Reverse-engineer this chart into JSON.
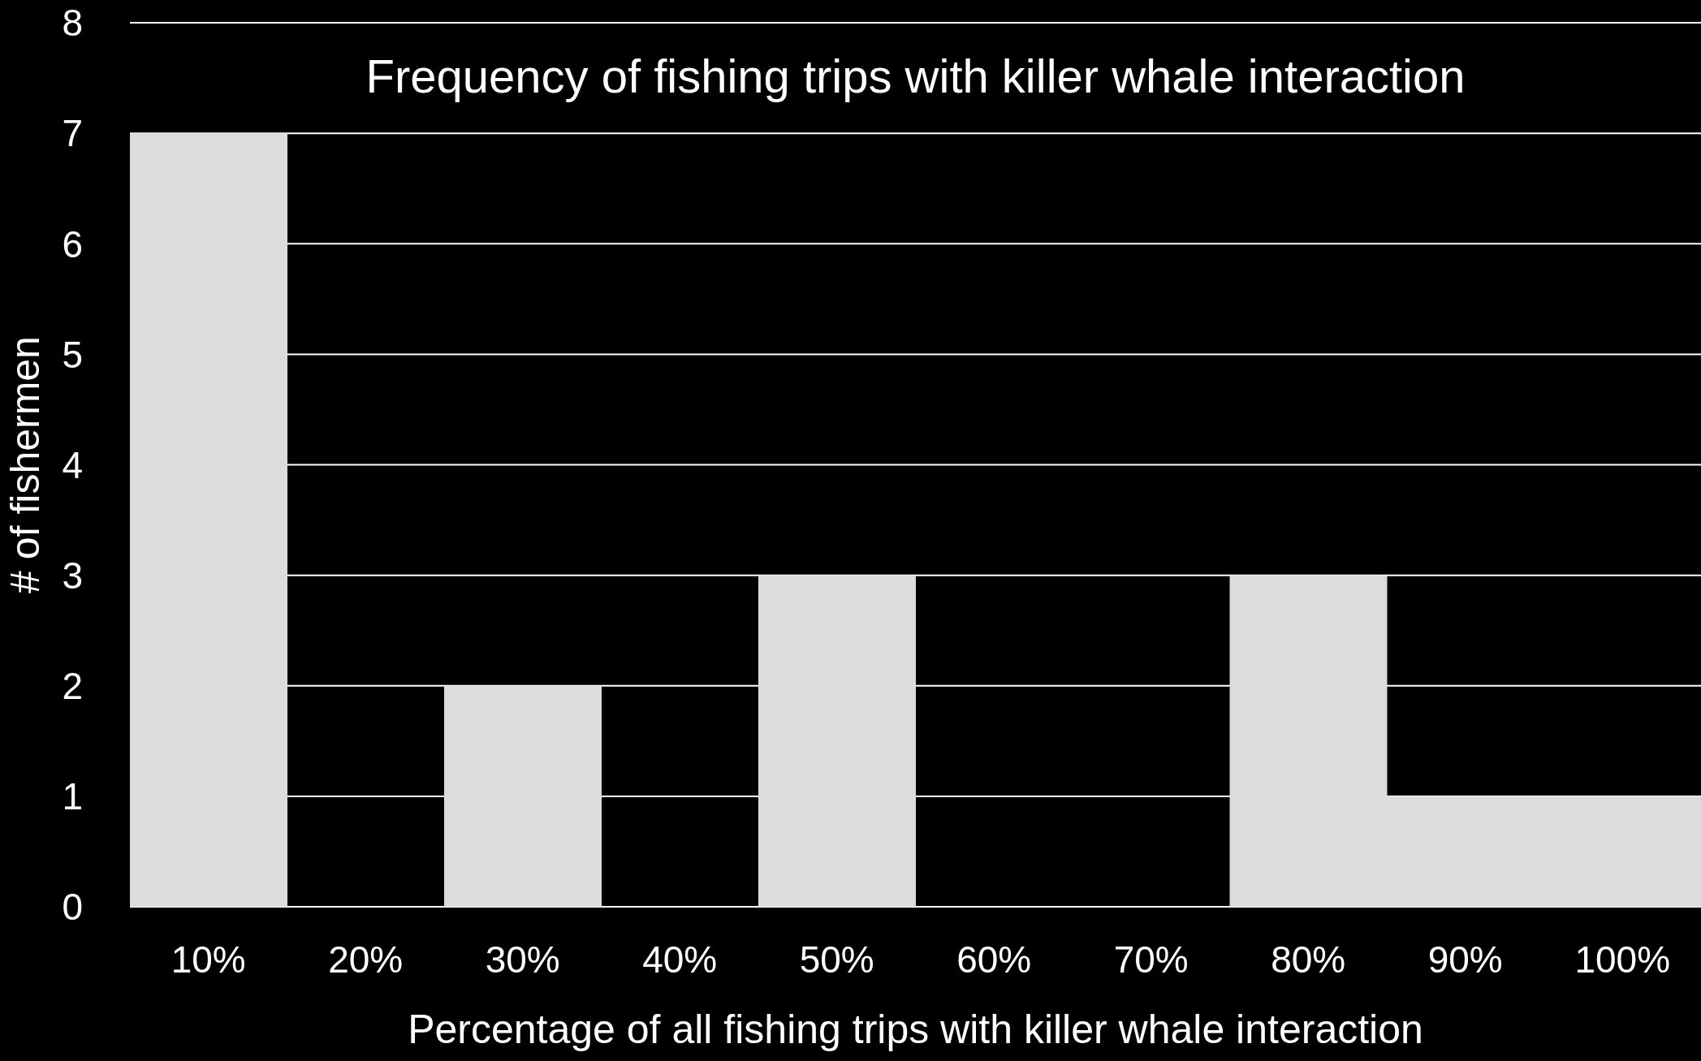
{
  "chart_data": {
    "type": "bar",
    "title": "Frequency of fishing trips with killer whale interaction",
    "xlabel": "Percentage of all fishing trips with killer whale interaction",
    "ylabel": "# of fishermen",
    "categories": [
      "10%",
      "20%",
      "30%",
      "40%",
      "50%",
      "60%",
      "70%",
      "80%",
      "90%",
      "100%"
    ],
    "values": [
      7,
      0,
      2,
      0,
      3,
      0,
      0,
      3,
      1,
      1
    ],
    "color": "#dcdcdc",
    "ylim": [
      0,
      8
    ],
    "yticks": [
      0,
      1,
      2,
      3,
      4,
      5,
      6,
      7,
      8
    ],
    "grid": "y"
  }
}
